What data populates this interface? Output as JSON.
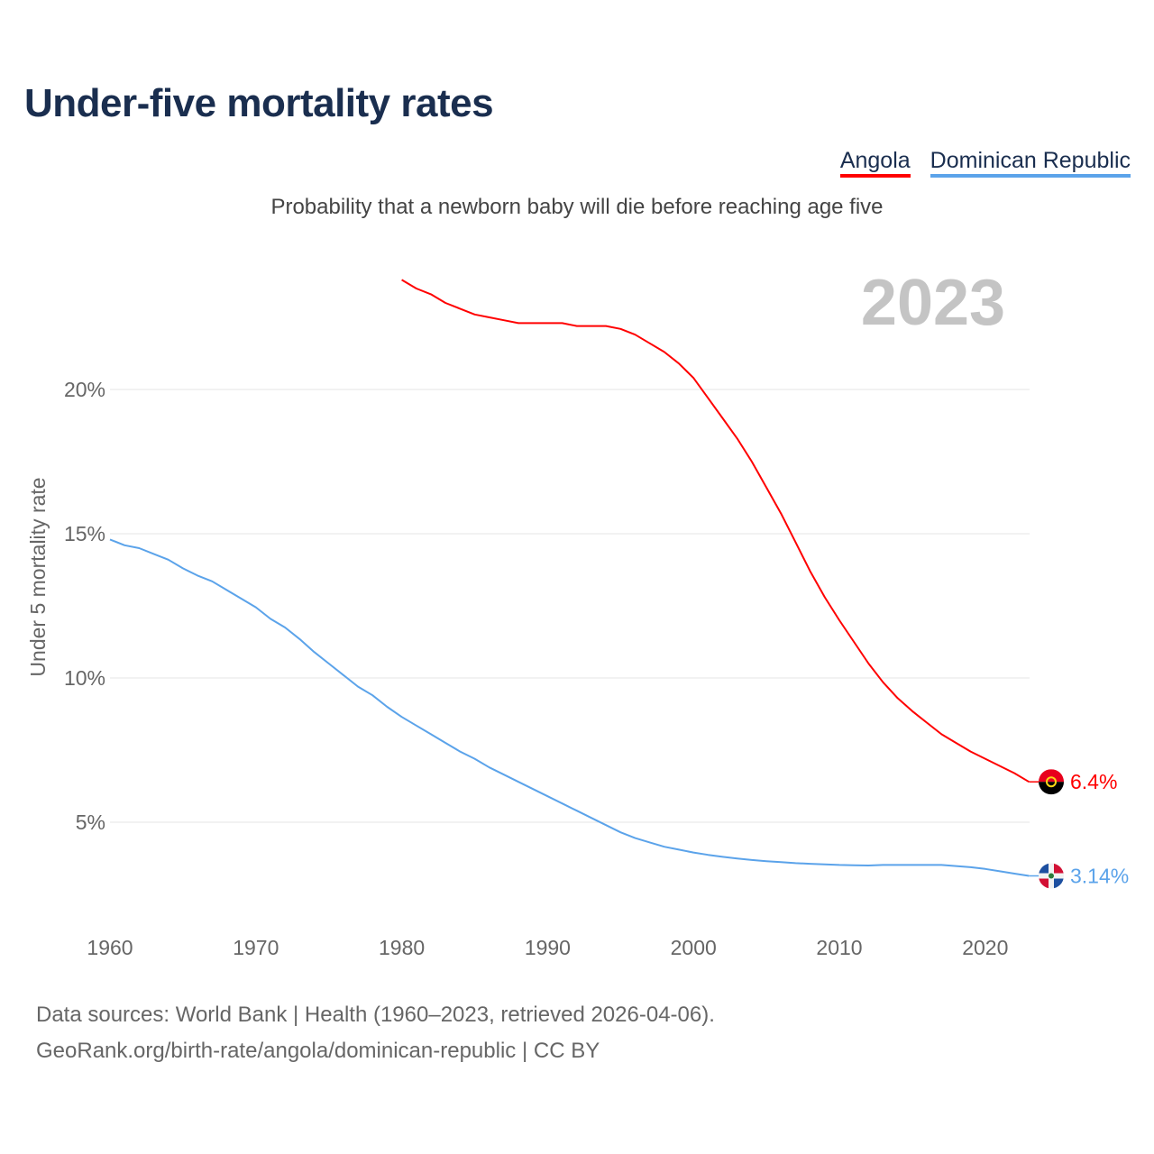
{
  "chart_data": {
    "type": "line",
    "title": "Under-five mortality rates",
    "subtitle": "Probability that a newborn baby will die before reaching age five",
    "ylabel": "Under 5 mortality rate",
    "xlabel": "",
    "year_label": "2023",
    "xlim": [
      1960,
      2023
    ],
    "ylim": [
      0,
      24
    ],
    "xticks": [
      "1960",
      "1970",
      "1980",
      "1990",
      "2000",
      "2010",
      "2020"
    ],
    "yticks": [
      {
        "value": 5,
        "label": "5%"
      },
      {
        "value": 10,
        "label": "10%"
      },
      {
        "value": 15,
        "label": "15%"
      },
      {
        "value": 20,
        "label": "20%"
      }
    ],
    "grid": true,
    "legend_position": "top-right",
    "series": [
      {
        "name": "Angola",
        "color": "#ff0000",
        "end_label": "6.4%",
        "start_year": 1980,
        "values": [
          23.8,
          23.5,
          23.3,
          23.0,
          22.8,
          22.6,
          22.5,
          22.4,
          22.3,
          22.3,
          22.3,
          22.3,
          22.2,
          22.2,
          22.2,
          22.1,
          21.9,
          21.6,
          21.3,
          20.9,
          20.4,
          19.7,
          19.0,
          18.3,
          17.5,
          16.6,
          15.7,
          14.7,
          13.7,
          12.8,
          12.0,
          11.25,
          10.5,
          9.85,
          9.3,
          8.85,
          8.45,
          8.05,
          7.75,
          7.45,
          7.2,
          6.95,
          6.7,
          6.4
        ]
      },
      {
        "name": "Dominican Republic",
        "color": "#5ba3ea",
        "end_label": "3.14%",
        "start_year": 1960,
        "values": [
          14.8,
          14.6,
          14.5,
          14.3,
          14.1,
          13.8,
          13.55,
          13.35,
          13.05,
          12.75,
          12.45,
          12.05,
          11.75,
          11.35,
          10.9,
          10.5,
          10.1,
          9.7,
          9.4,
          9.0,
          8.65,
          8.35,
          8.05,
          7.75,
          7.45,
          7.2,
          6.9,
          6.65,
          6.4,
          6.15,
          5.9,
          5.65,
          5.4,
          5.15,
          4.9,
          4.65,
          4.45,
          4.3,
          4.15,
          4.05,
          3.95,
          3.87,
          3.8,
          3.74,
          3.69,
          3.65,
          3.62,
          3.58,
          3.56,
          3.54,
          3.52,
          3.51,
          3.5,
          3.52,
          3.52,
          3.52,
          3.52,
          3.52,
          3.48,
          3.44,
          3.38,
          3.3,
          3.22,
          3.14
        ]
      }
    ]
  },
  "source": {
    "line1": "Data sources: World Bank | Health (1960–2023, retrieved 2026-04-06).",
    "line2": "GeoRank.org/birth-rate/angola/dominican-republic | CC BY"
  }
}
